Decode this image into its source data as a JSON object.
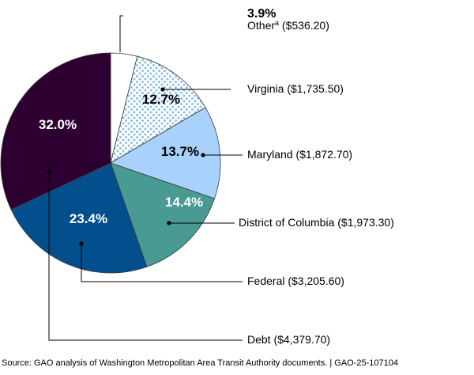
{
  "chart_data": {
    "type": "pie",
    "title": "",
    "slices": [
      {
        "name": "Other",
        "footnote": "a",
        "value": 536.2,
        "percent_label": "3.9%",
        "amount_label": "($536.20)",
        "color": "#ffffff",
        "pattern": "none"
      },
      {
        "name": "Virginia",
        "value": 1735.5,
        "percent_label": "12.7%",
        "amount_label": "($1,735.50)",
        "color": "#ffffff",
        "pattern": "dots",
        "pattern_color": "#8ec0ea"
      },
      {
        "name": "Maryland",
        "value": 1872.7,
        "percent_label": "13.7%",
        "amount_label": "($1,872.70)",
        "color": "#a8d2fb",
        "pattern": "none"
      },
      {
        "name": "District of Columbia",
        "value": 1973.3,
        "percent_label": "14.4%",
        "amount_label": "($1,973.30)",
        "color": "#489a92",
        "pattern": "none"
      },
      {
        "name": "Federal",
        "value": 3205.6,
        "percent_label": "23.4%",
        "amount_label": "($3,205.60)",
        "color": "#034f8d",
        "pattern": "none"
      },
      {
        "name": "Debt",
        "value": 4379.7,
        "percent_label": "32.0%",
        "amount_label": "($4,379.70)",
        "color": "#2e0031",
        "pattern": "none"
      }
    ]
  },
  "source_note": "Source: GAO analysis of Washington Metropolitan Area Transit Authority documents.  |  GAO-25-107104"
}
